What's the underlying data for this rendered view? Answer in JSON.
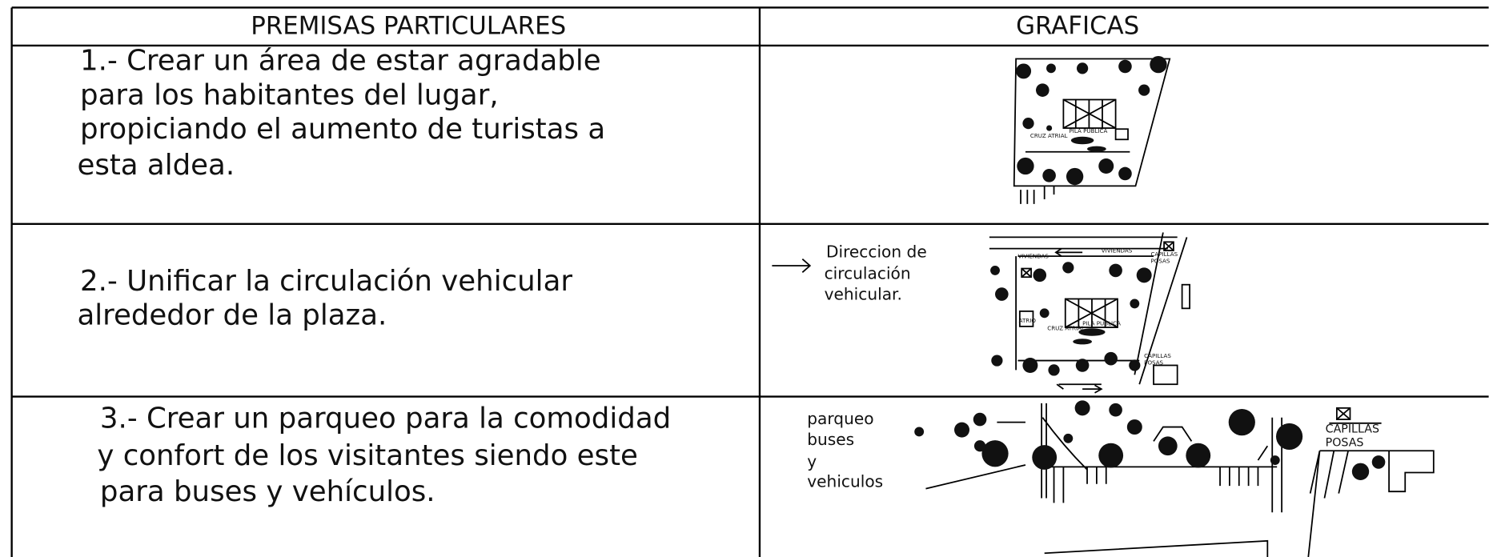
{
  "table": {
    "headers": [
      "PREMISAS PARTICULARES",
      "GRAFICAS"
    ],
    "rows": [
      {
        "premise": [
          "1.-  Crear un área de estar agradable",
          "para los habitantes del lugar,",
          "propiciando el aumento de turistas a",
          "esta aldea."
        ],
        "graphic_labels": [
          "PILA PUBLICA",
          "CRUZ ATRIAL"
        ]
      },
      {
        "premise": [
          "2.-  Unificar la circulación vehicular",
          "alrededor de la plaza."
        ],
        "graphic_labels": [
          "Direccion de",
          "circulación",
          "vehicular.",
          "VIVIENDAS",
          "VIVIENDAS",
          "CAPILLAS",
          "POSAS",
          "ATRIO",
          "PILA PUBLICA",
          "CRUZ ATRIAL",
          "CAPILLAS",
          "POSAS"
        ]
      },
      {
        "premise": [
          "3.-  Crear un parqueo para la comodidad",
          "y confort de los visitantes siendo este",
          "para buses y vehículos."
        ],
        "graphic_labels": [
          "parqueo",
          "buses",
          "y",
          "vehiculos",
          "CAPILLAS",
          "POSAS"
        ]
      }
    ]
  }
}
